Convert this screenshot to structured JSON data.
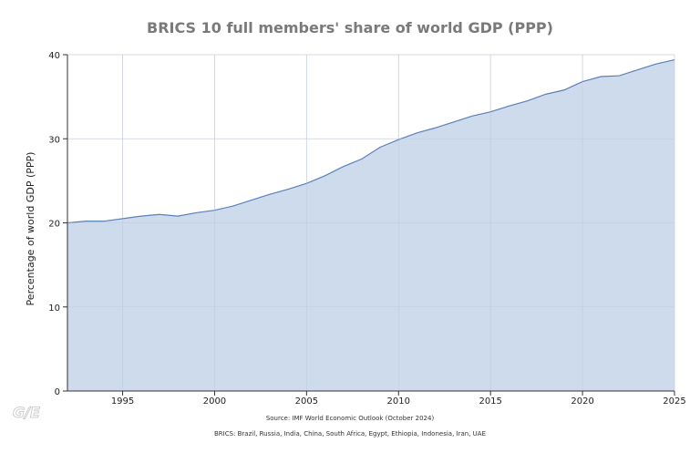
{
  "chart_data": {
    "type": "area",
    "title": "BRICS 10 full members' share of world GDP (PPP)",
    "ylabel": "Percentage of world GDP (PPP)",
    "xlabel": "",
    "xlim": [
      1992,
      2025
    ],
    "ylim": [
      0,
      40
    ],
    "x_ticks": [
      "1995",
      "2000",
      "2005",
      "2010",
      "2015",
      "2020",
      "2025"
    ],
    "y_ticks": [
      "0",
      "10",
      "20",
      "30",
      "40"
    ],
    "grid": true,
    "legend": "none",
    "series": [
      {
        "color": "#5b80b8",
        "fill": "#cbd9ec",
        "x": [
          1992,
          1993,
          1994,
          1995,
          1996,
          1997,
          1998,
          1999,
          2000,
          2001,
          2002,
          2003,
          2004,
          2005,
          2006,
          2007,
          2008,
          2009,
          2010,
          2011,
          2012,
          2013,
          2014,
          2015,
          2016,
          2017,
          2018,
          2019,
          2020,
          2021,
          2022,
          2023,
          2024,
          2025
        ],
        "y": [
          20.0,
          20.2,
          20.2,
          20.5,
          20.8,
          21.0,
          20.8,
          21.2,
          21.5,
          22.0,
          22.7,
          23.4,
          24.0,
          24.7,
          25.6,
          26.7,
          27.6,
          29.0,
          29.9,
          30.7,
          31.3,
          32.0,
          32.7,
          33.2,
          33.9,
          34.5,
          35.3,
          35.8,
          36.8,
          37.4,
          37.5,
          38.2,
          38.9,
          39.4
        ]
      }
    ]
  },
  "source": "Source: IMF World Economic Outlook (October 2024)",
  "members": "BRICS: Brazil, Russia, India, China, South Africa, Egypt, Ethiopia, Indonesia, Iran, UAE",
  "logo": "G∕E"
}
